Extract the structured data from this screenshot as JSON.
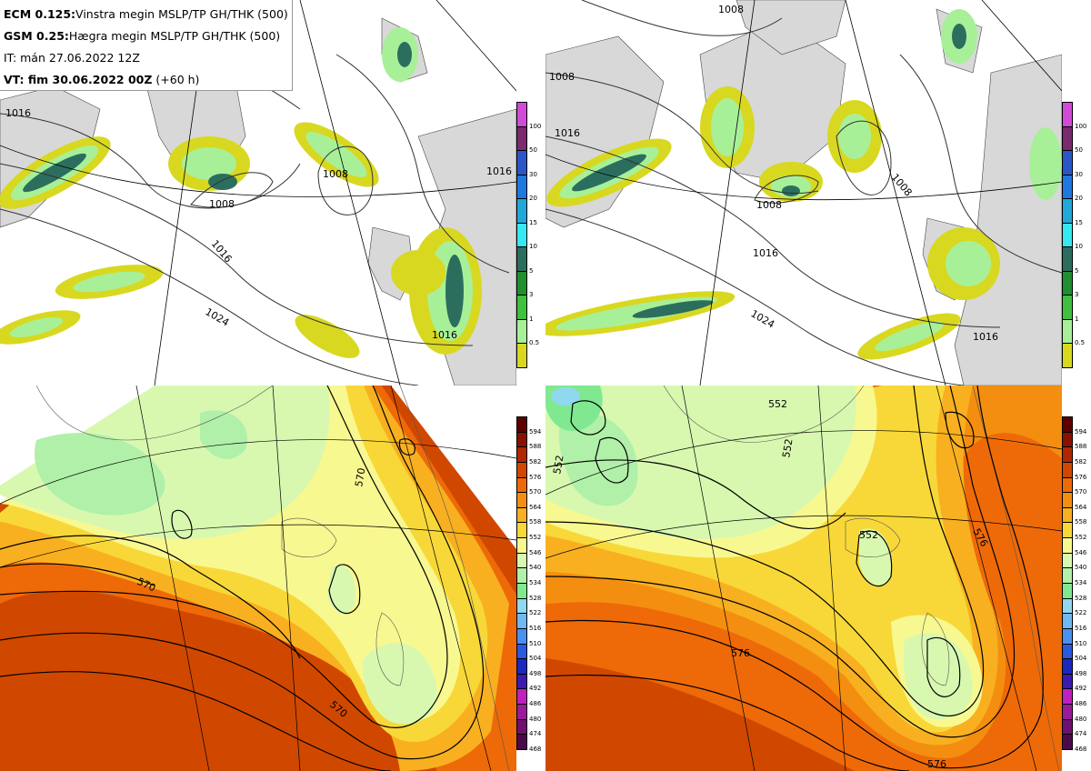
{
  "info": {
    "line1_bold": "ECM 0.125:",
    "line1_rest": "Vinstra megin MSLP/TP GH/THK (500)",
    "line2_bold": "GSM 0.25:",
    "line2_rest": "Hægra megin MSLP/TP GH/THK (500)",
    "line3": "IT: mán 27.06.2022 12Z",
    "line4_bold": "VT: fim 30.06.2022 00Z",
    "line4_rest": "(+60 h)"
  },
  "precip_legend": {
    "labels": [
      "100",
      "50",
      "30",
      "20",
      "15",
      "10",
      "5",
      "3",
      "1",
      "0.5"
    ],
    "colors": [
      "#d24ad8",
      "#7a2a6e",
      "#2a56c8",
      "#1e78e0",
      "#20a8d8",
      "#36e8f0",
      "#2c6e5e",
      "#1f8f2f",
      "#40c040",
      "#a8f098",
      "#d8d820"
    ]
  },
  "height_legend": {
    "labels": [
      "594",
      "588",
      "582",
      "576",
      "570",
      "564",
      "558",
      "552",
      "546",
      "540",
      "534",
      "528",
      "522",
      "516",
      "510",
      "504",
      "498",
      "492",
      "486",
      "480",
      "474",
      "468"
    ],
    "colors": [
      "#5e0000",
      "#8a1000",
      "#b02800",
      "#d04800",
      "#ee6a08",
      "#f48e10",
      "#f8b020",
      "#f8d838",
      "#f8f890",
      "#d8f8b0",
      "#b0f0a8",
      "#80e890",
      "#90d8f0",
      "#70b8f0",
      "#4a90f0",
      "#2a58e0",
      "#1a28c0",
      "#3a1ab0",
      "#c020c0",
      "#9a1a9a",
      "#701070",
      "#4a0a4a"
    ]
  },
  "map_labels": {
    "tl": [
      "1016",
      "1008",
      "1008",
      "1016",
      "1024",
      "1016",
      "1016"
    ],
    "tr": [
      "1008",
      "1008",
      "1016",
      "1008",
      "1008",
      "1016",
      "1024",
      "1016"
    ],
    "bl": [
      "570",
      "570",
      "570"
    ],
    "br": [
      "552",
      "552",
      "552",
      "552",
      "576",
      "576",
      "576"
    ]
  }
}
